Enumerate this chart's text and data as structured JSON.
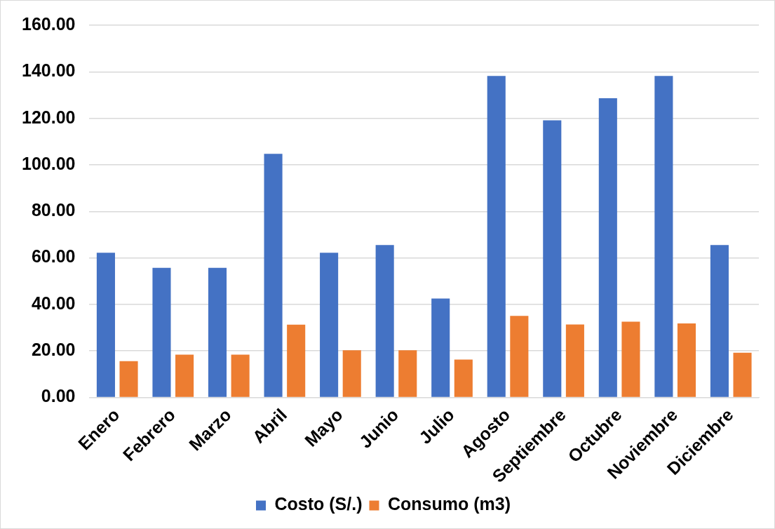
{
  "chart_data": {
    "type": "bar",
    "categories": [
      "Enero",
      "Febrero",
      "Marzo",
      "Abril",
      "Mayo",
      "Junio",
      "Julio",
      "Agosto",
      "Septiembre",
      "Octubre",
      "Noviembre",
      "Diciembre"
    ],
    "series": [
      {
        "name": "Costo (S/.)",
        "color": "#4472c4",
        "values": [
          62.2,
          55.7,
          55.7,
          104.7,
          62.2,
          65.5,
          42.5,
          138.2,
          119.1,
          128.6,
          138.2,
          65.5
        ]
      },
      {
        "name": "Consumo (m3)",
        "color": "#ed7d31",
        "values": [
          15.6,
          18.4,
          18.4,
          31.3,
          20.3,
          20.3,
          16.3,
          35.1,
          31.4,
          32.6,
          31.8,
          19.2
        ]
      }
    ],
    "ylim": [
      0,
      160
    ],
    "yticks": [
      {
        "value": 0,
        "label": "0.00"
      },
      {
        "value": 20,
        "label": "20.00"
      },
      {
        "value": 40,
        "label": "40.00"
      },
      {
        "value": 60,
        "label": "60.00"
      },
      {
        "value": 80,
        "label": "80.00"
      },
      {
        "value": 100,
        "label": "100.00"
      },
      {
        "value": 120,
        "label": "120.00"
      },
      {
        "value": 140,
        "label": "140.00"
      },
      {
        "value": 160,
        "label": "160.00"
      }
    ],
    "grid": "y",
    "legend": "bottom"
  }
}
